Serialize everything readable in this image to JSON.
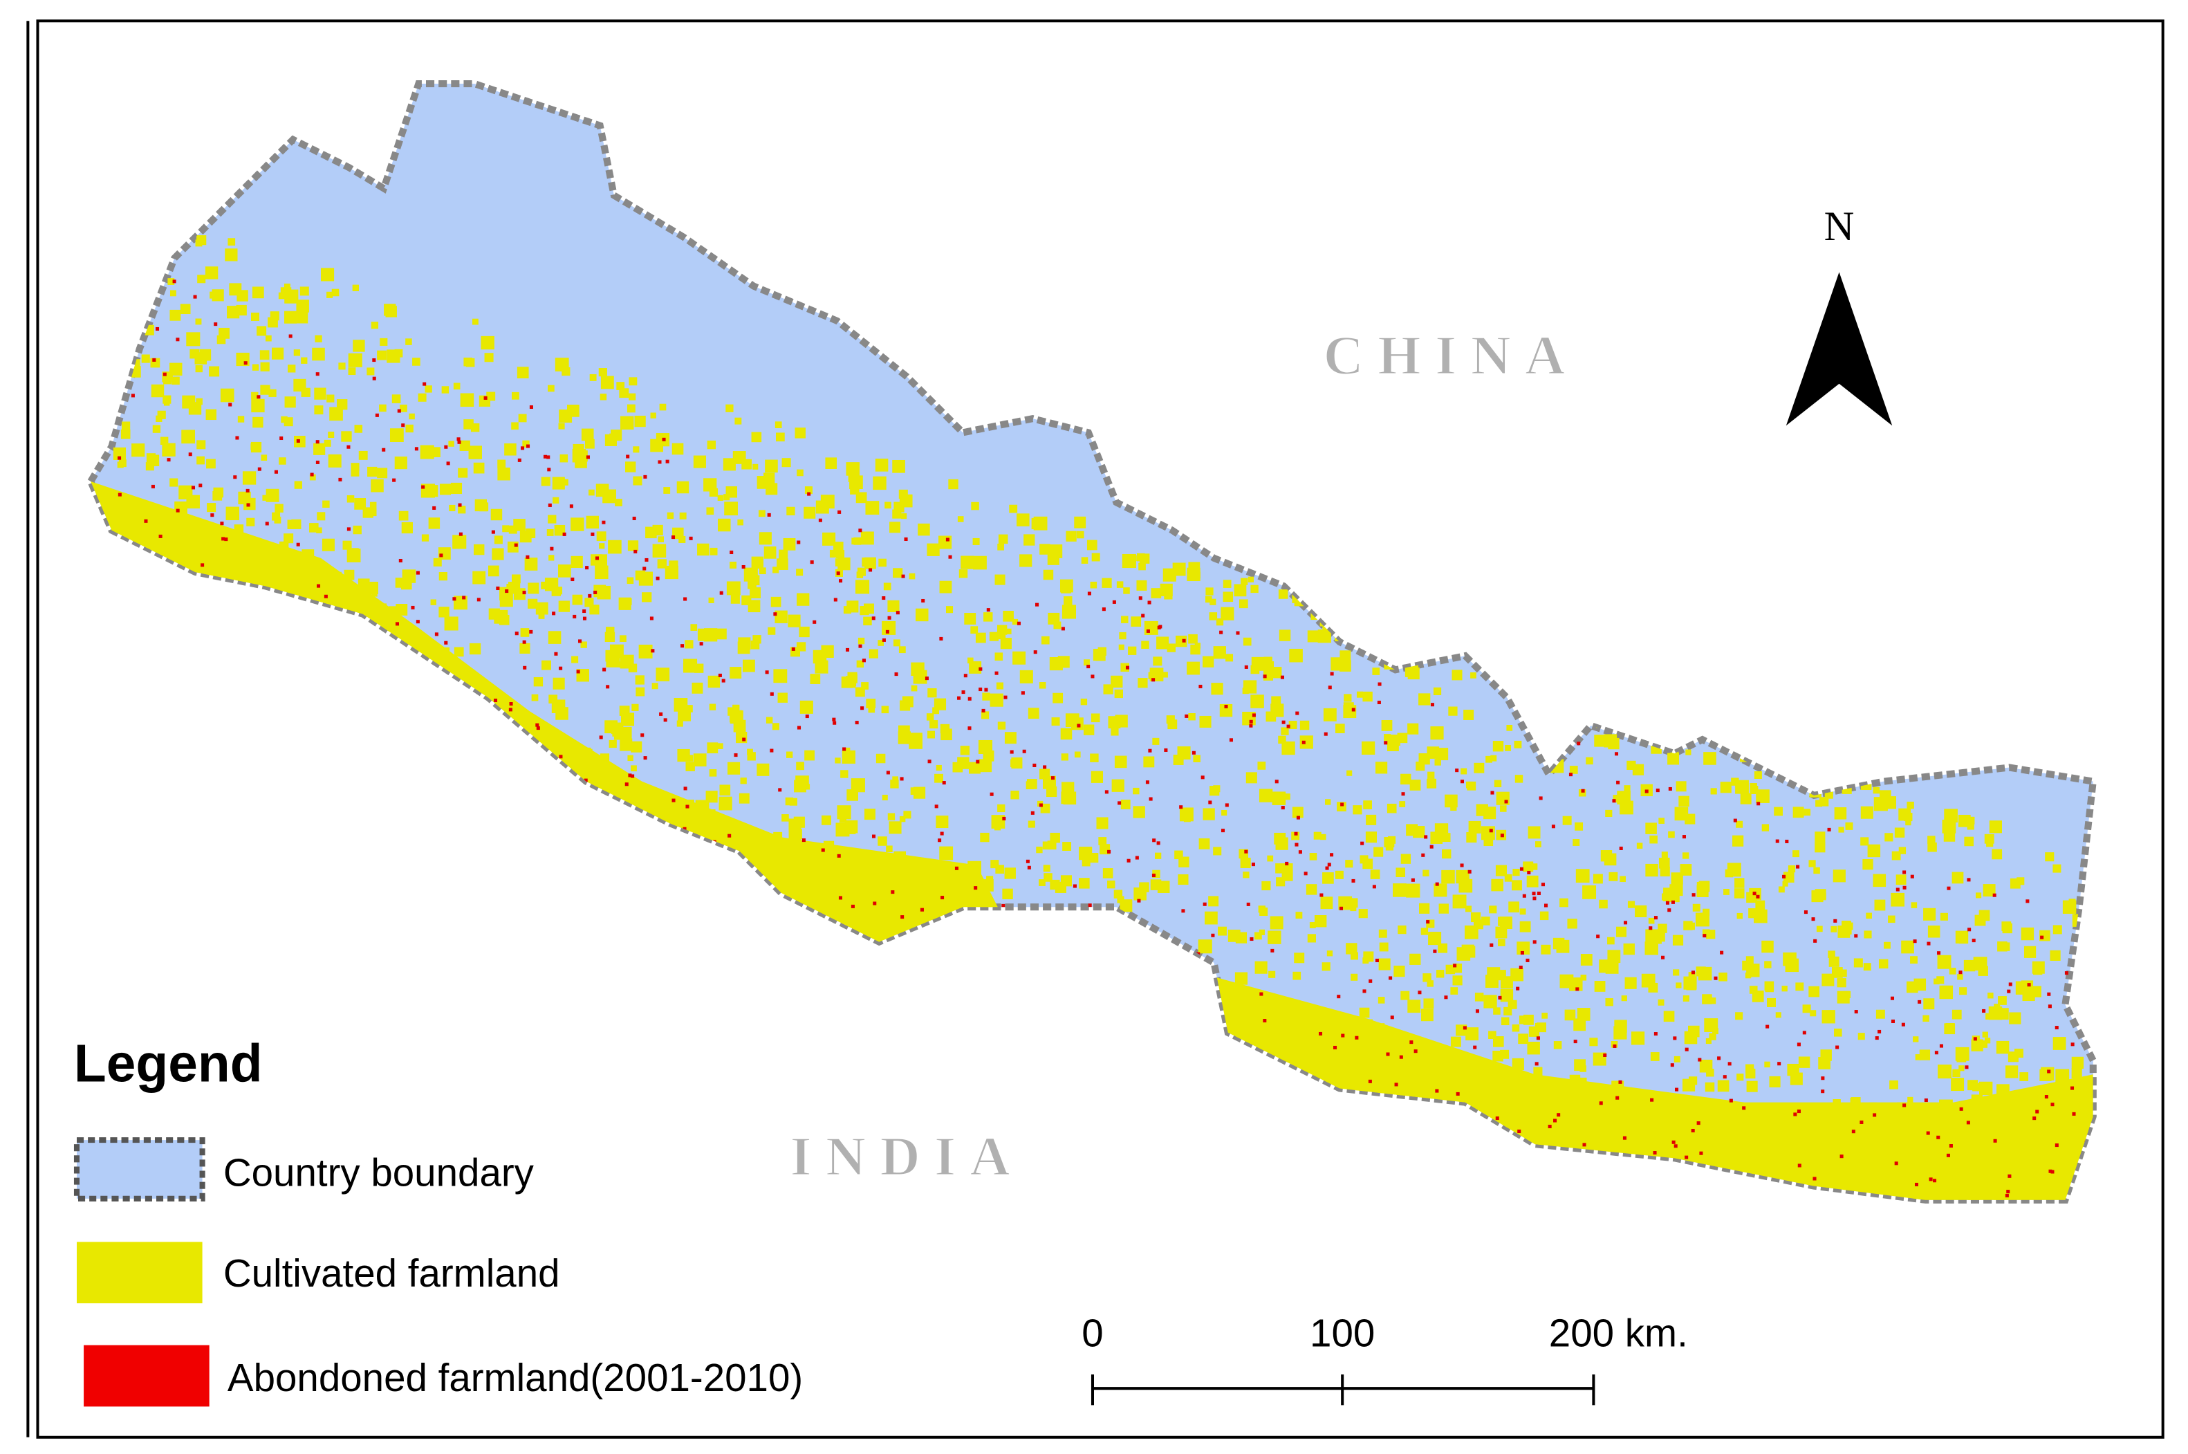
{
  "map": {
    "north_label": "N",
    "countries": [
      "CHINA",
      "INDIA"
    ],
    "legend": {
      "title": "Legend",
      "items": [
        "Country boundary",
        "Cultivated farmland",
        "Abondoned farmland(2001-2010)"
      ]
    },
    "scale_bar": {
      "labels": [
        "0",
        "100",
        "200 km."
      ]
    }
  }
}
